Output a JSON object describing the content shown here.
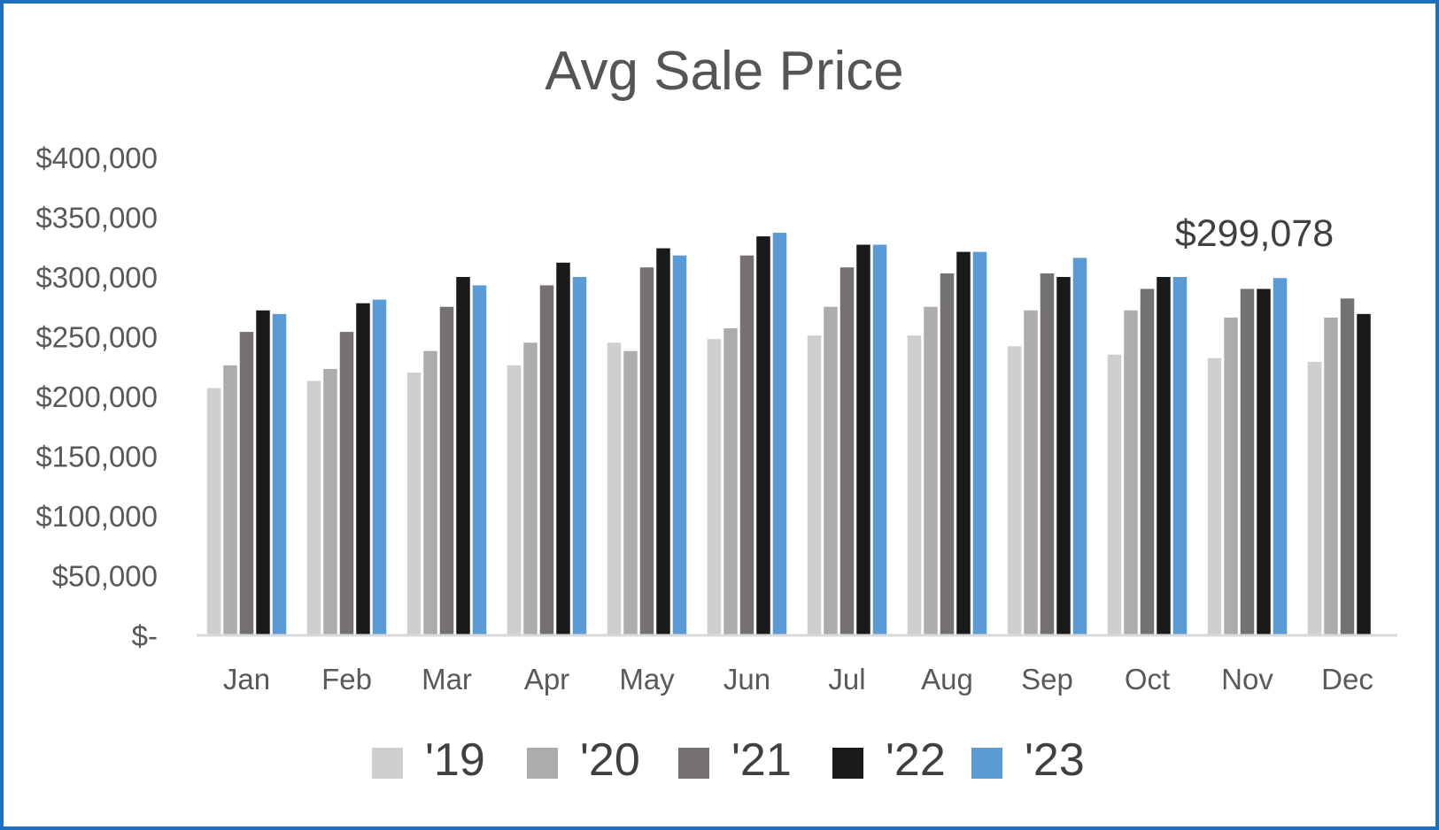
{
  "chart_data": {
    "type": "bar",
    "title": "Avg Sale Price",
    "xlabel": "",
    "ylabel": "",
    "ylim": [
      0,
      400000
    ],
    "y_ticks": [
      0,
      50000,
      100000,
      150000,
      200000,
      250000,
      300000,
      350000,
      400000
    ],
    "y_tick_labels": [
      "$-",
      "$50,000",
      "$100,000",
      "$150,000",
      "$200,000",
      "$250,000",
      "$300,000",
      "$350,000",
      "$400,000"
    ],
    "grid": false,
    "legend_position": "bottom",
    "categories": [
      "Jan",
      "Feb",
      "Mar",
      "Apr",
      "May",
      "Jun",
      "Jul",
      "Aug",
      "Sep",
      "Oct",
      "Nov",
      "Dec"
    ],
    "series": [
      {
        "name": "'19",
        "color": "#d0cece",
        "values": [
          207000,
          213000,
          220000,
          226000,
          245000,
          248000,
          251000,
          251000,
          242000,
          235000,
          232000,
          229000
        ]
      },
      {
        "name": "'20",
        "color": "#aeabab",
        "values": [
          226000,
          223000,
          238000,
          245000,
          238000,
          257000,
          275000,
          275000,
          272000,
          272000,
          266000,
          266000
        ]
      },
      {
        "name": "'21",
        "color": "#767171",
        "values": [
          254000,
          254000,
          275000,
          293000,
          308000,
          318000,
          308000,
          303000,
          303000,
          290000,
          290000,
          282000
        ]
      },
      {
        "name": "'22",
        "color": "#1a1a1a",
        "values": [
          272000,
          278000,
          300000,
          312000,
          324000,
          334000,
          327000,
          321000,
          300000,
          300000,
          290000,
          269000
        ]
      },
      {
        "name": "'23",
        "color": "#5b9bd5",
        "values": [
          269000,
          281000,
          293000,
          300000,
          318000,
          337000,
          327000,
          321000,
          316000,
          300000,
          299078,
          null
        ]
      }
    ],
    "annotations": [
      {
        "text": "$299,078",
        "category": "Nov",
        "series": "'23"
      }
    ]
  }
}
